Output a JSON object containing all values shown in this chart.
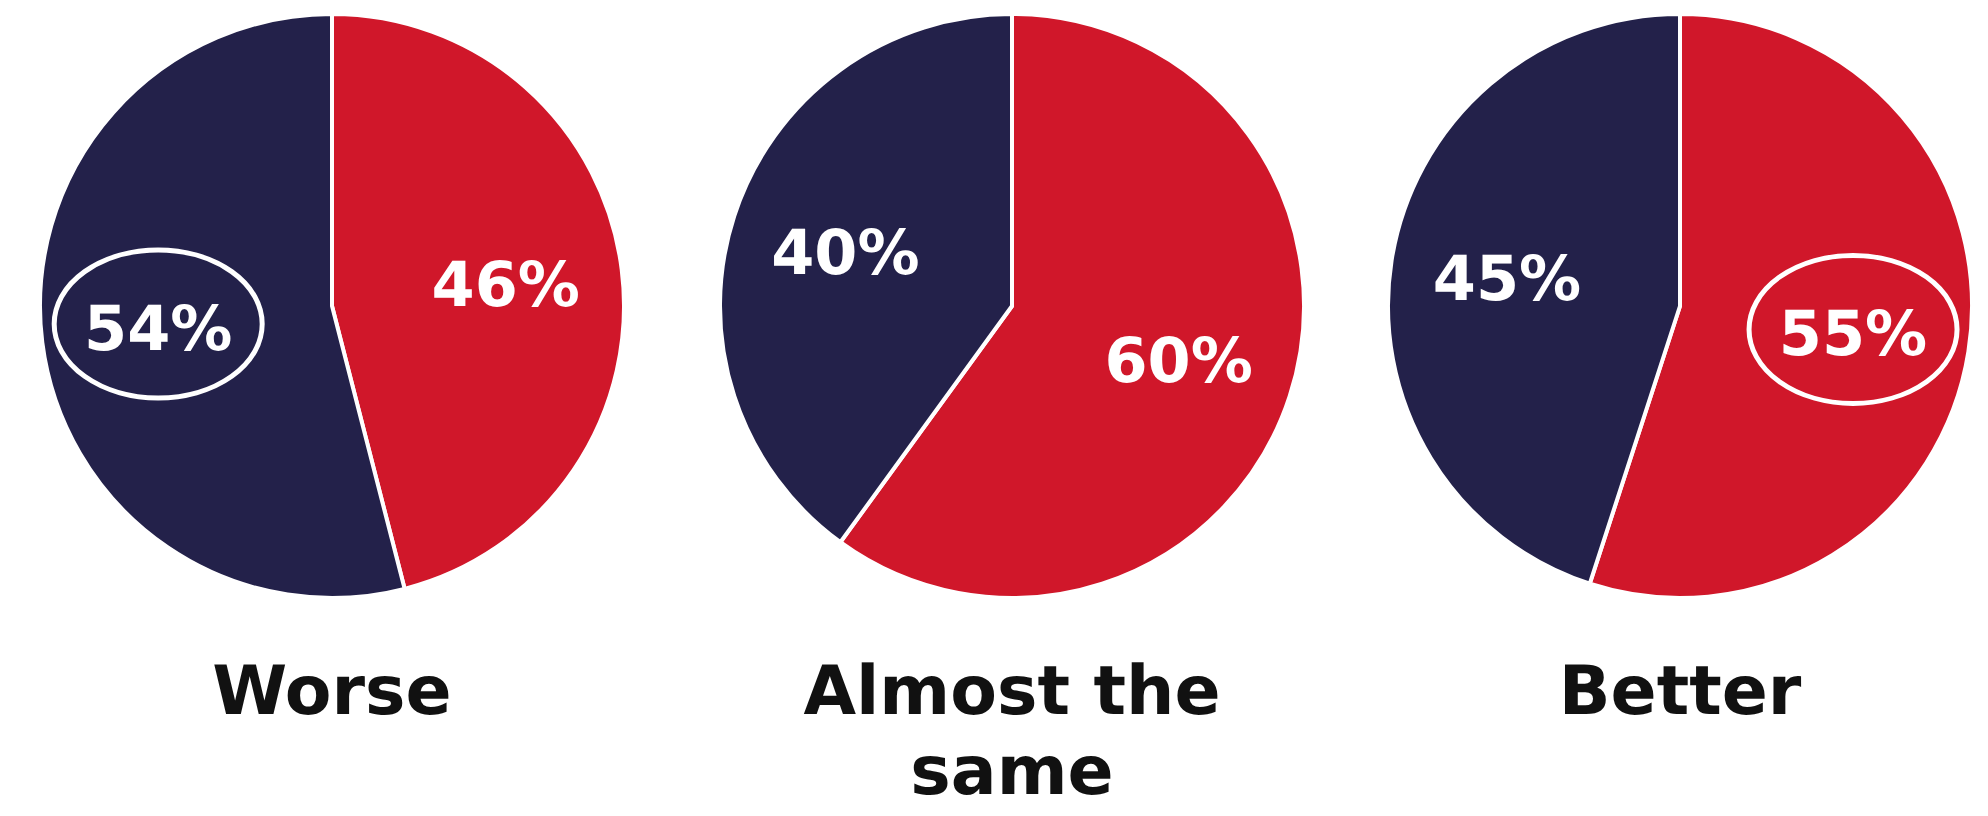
{
  "chart_data": [
    {
      "type": "pie",
      "title": "Worse",
      "categories": [
        null,
        null
      ],
      "values": [
        46,
        54
      ],
      "colors": [
        "#d0172a",
        "#23214a"
      ],
      "value_labels": [
        "46%",
        "54%"
      ]
    },
    {
      "type": "pie",
      "title": "Almost the same",
      "categories": [
        null,
        null
      ],
      "values": [
        60,
        40
      ],
      "colors": [
        "#d0172a",
        "#23214a"
      ],
      "value_labels": [
        "60%",
        "40%"
      ]
    },
    {
      "type": "pie",
      "title": "Better",
      "categories": [
        null,
        null
      ],
      "values": [
        55,
        45
      ],
      "colors": [
        "#d0172a",
        "#23214a"
      ],
      "value_labels": [
        "55%",
        "45%"
      ]
    }
  ]
}
